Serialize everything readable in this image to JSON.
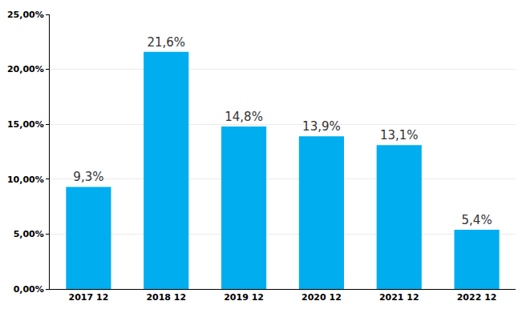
{
  "chart_data": {
    "type": "bar",
    "categories": [
      "2017 12",
      "2018 12",
      "2019 12",
      "2020 12",
      "2021 12",
      "2022 12"
    ],
    "values": [
      9.3,
      21.6,
      14.8,
      13.9,
      13.1,
      5.4
    ],
    "value_labels": [
      "9,3%",
      "21,6%",
      "14,8%",
      "13,9%",
      "13,1%",
      "5,4%"
    ],
    "data_labels": true,
    "color": "#00aeef",
    "ylim": [
      0,
      25
    ],
    "yticks": [
      {
        "value": 0,
        "label": "0,00%"
      },
      {
        "value": 5,
        "label": "5,00%"
      },
      {
        "value": 10,
        "label": "10,00%"
      },
      {
        "value": 15,
        "label": "15,00%"
      },
      {
        "value": 20,
        "label": "20,00%"
      },
      {
        "value": 25,
        "label": "25,00%"
      }
    ],
    "grid": true
  }
}
